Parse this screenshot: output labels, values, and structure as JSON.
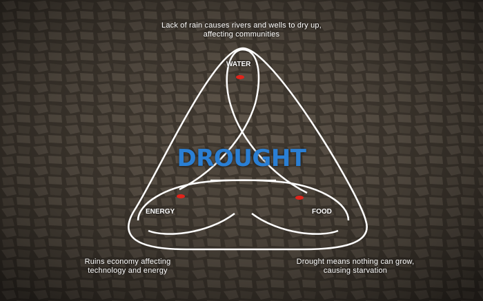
{
  "title": "DROUGHT",
  "nodes": {
    "water": "WATER",
    "energy": "ENERGY",
    "food": "FOOD"
  },
  "captions": {
    "water": [
      "Lack of rain causes rivers and wells to dry up,",
      "affecting communities"
    ],
    "energy": [
      "Ruins economy affecting",
      "technology and energy"
    ],
    "food": [
      "Drought means nothing can grow,",
      "causing starvation"
    ]
  },
  "colors": {
    "title": "#2a7fd4",
    "loop_stroke": "#ffffff",
    "marker": "#e0241b",
    "background": "#2b2620"
  }
}
